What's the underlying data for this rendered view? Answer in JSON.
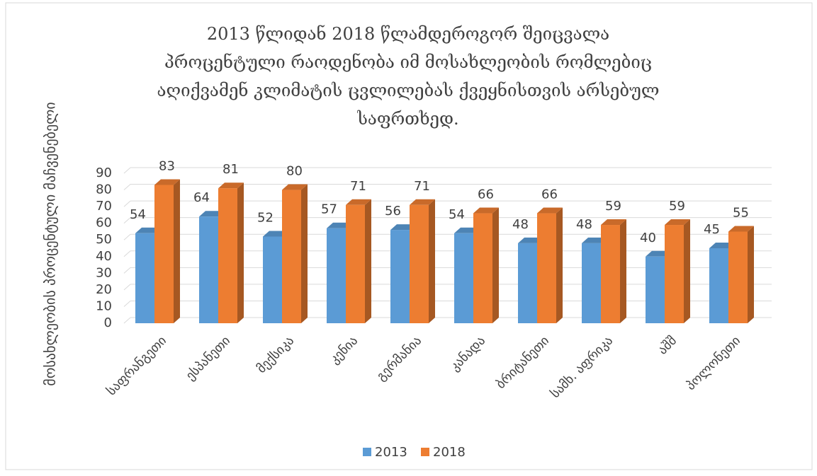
{
  "chart_data": {
    "type": "bar3d",
    "title": "2013 წლიდან 2018 წლამდეროგორ შეიცვალა პროცენტული რაოდენობა იმ მოსახლეობის რომლებიც აღიქვამენ კლიმატის ცვლილებას ქვეყნისთვის არსებულ საფრთხედ.",
    "y_label": "მოსახლეობის პროცენტული მაჩვენებელი",
    "categories": [
      "საფრანგეთი",
      "ესპანეთი",
      "მექსიკა",
      "კენია",
      "გერმანია",
      "კანადა",
      "ბრიტანეთი",
      "სამხ. აფრიკა",
      "აშშ",
      "პოლონეთი"
    ],
    "series": [
      {
        "name": "2013",
        "color": "#5b9bd5",
        "values": [
          54,
          64,
          52,
          57,
          56,
          54,
          48,
          48,
          40,
          45
        ]
      },
      {
        "name": "2018",
        "color": "#ed7d31",
        "values": [
          83,
          81,
          80,
          71,
          71,
          66,
          66,
          59,
          59,
          55
        ]
      }
    ],
    "ylim": [
      0,
      90
    ],
    "yticks": [
      0,
      10,
      20,
      30,
      40,
      50,
      60,
      70,
      80,
      90
    ],
    "grid": true,
    "legend": "bottom"
  }
}
